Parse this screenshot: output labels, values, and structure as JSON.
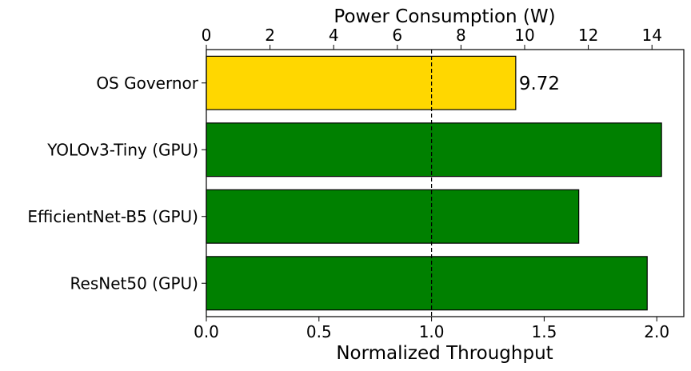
{
  "chart_data": {
    "type": "bar",
    "orientation": "horizontal",
    "categories": [
      "OS Governor",
      "YOLOv3-Tiny (GPU)",
      "EfficientNet-B5 (GPU)",
      "ResNet50 (GPU)"
    ],
    "values": [
      9.72,
      14.3,
      11.7,
      13.85
    ],
    "value_axis": "top",
    "xlabel_top": "Power Consumption (W)",
    "xlim_top": [
      0,
      15
    ],
    "xticks_top": [
      0,
      2,
      4,
      6,
      8,
      10,
      12,
      14
    ],
    "xlabel_bottom": "Normalized Throughput",
    "xlim_bottom": [
      0,
      2.12
    ],
    "xticks_bottom": [
      0.0,
      0.5,
      1.0,
      1.5,
      2.0
    ],
    "xtick_labels_bottom": [
      "0.0",
      "0.5",
      "1.0",
      "1.5",
      "2.0"
    ],
    "reference_line": {
      "axis": "bottom",
      "value": 1.0,
      "style": "dashed"
    },
    "bar_colors": [
      "#FFD700",
      "#008000",
      "#008000",
      "#008000"
    ],
    "data_labels": [
      {
        "category": "OS Governor",
        "text": "9.72"
      }
    ],
    "grid": false,
    "legend": "none"
  }
}
